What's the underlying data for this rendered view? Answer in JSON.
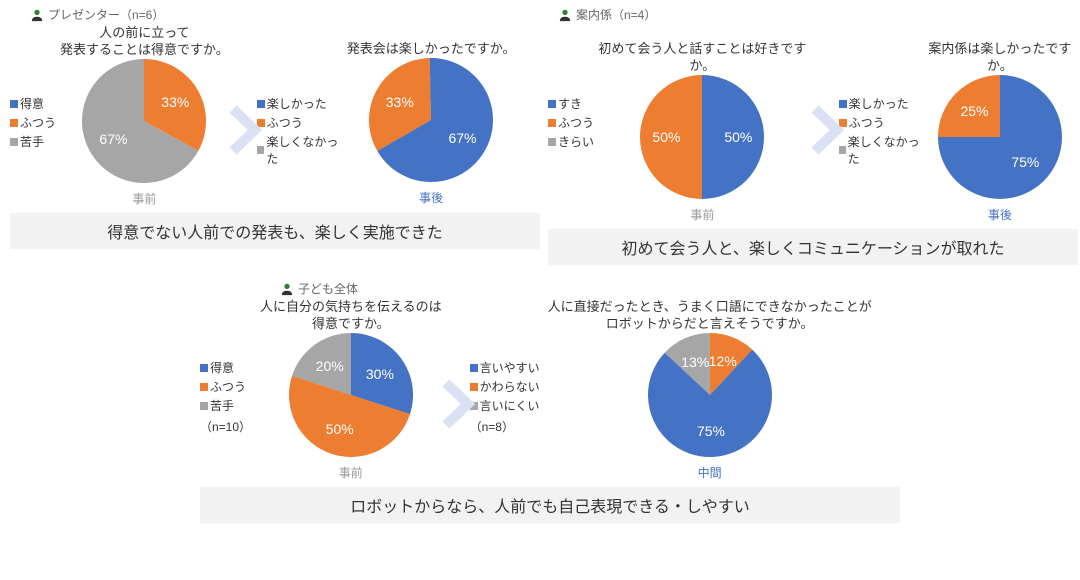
{
  "colors": {
    "blue": "#4472c4",
    "orange": "#ed7d31",
    "gray": "#a6a6a6",
    "lightgray": "#999999",
    "arrow": "#d9e1f2",
    "summary_bg": "#f2f2f2",
    "icon_green": "#2e7d32"
  },
  "sections": {
    "presenter": {
      "header": "プレゼンター（n=6）",
      "chart1": {
        "title": "人の前に立って\n発表することは得意ですか。",
        "type": "pie",
        "legend": [
          "得意",
          "ふつう",
          "苦手"
        ],
        "legend_colors": [
          "#4472c4",
          "#ed7d31",
          "#a6a6a6"
        ],
        "slices": [
          {
            "label": "33%",
            "value": 33,
            "color": "#ed7d31"
          },
          {
            "label": "67%",
            "value": 67,
            "color": "#a6a6a6"
          }
        ],
        "stage": "事前"
      },
      "chart2": {
        "title": "発表会は楽しかったですか。",
        "type": "pie",
        "legend": [
          "楽しかった",
          "ふつう",
          "楽しくなかった"
        ],
        "legend_colors": [
          "#4472c4",
          "#ed7d31",
          "#a6a6a6"
        ],
        "slices": [
          {
            "label": "33%",
            "value": 33,
            "color": "#ed7d31"
          },
          {
            "label": "67%",
            "value": 67,
            "color": "#4472c4"
          }
        ],
        "stage": "事後"
      },
      "summary": "得意でない人前での発表も、楽しく実施できた"
    },
    "guide": {
      "header": "案内係（n=4）",
      "chart1": {
        "title": "初めて会う人と話すことは好きですか。",
        "type": "pie",
        "legend": [
          "すき",
          "ふつう",
          "きらい"
        ],
        "legend_colors": [
          "#4472c4",
          "#ed7d31",
          "#a6a6a6"
        ],
        "slices": [
          {
            "label": "50%",
            "value": 50,
            "color": "#4472c4"
          },
          {
            "label": "50%",
            "value": 50,
            "color": "#ed7d31"
          }
        ],
        "stage": "事前"
      },
      "chart2": {
        "title": "案内係は楽しかったですか。",
        "type": "pie",
        "legend": [
          "楽しかった",
          "ふつう",
          "楽しくなかった"
        ],
        "legend_colors": [
          "#4472c4",
          "#ed7d31",
          "#a6a6a6"
        ],
        "slices": [
          {
            "label": "25%",
            "value": 25,
            "color": "#ed7d31"
          },
          {
            "label": "75%",
            "value": 75,
            "color": "#4472c4"
          }
        ],
        "stage": "事後"
      },
      "summary": "初めて会う人と、楽しくコミュニケーションが取れた"
    },
    "children": {
      "header": "子ども全体",
      "chart1": {
        "title": "人に自分の気持ちを伝えるのは\n得意ですか。",
        "type": "pie",
        "legend": [
          "得意",
          "ふつう",
          "苦手"
        ],
        "legend_colors": [
          "#4472c4",
          "#ed7d31",
          "#a6a6a6"
        ],
        "n_label": "（n=10）",
        "slices": [
          {
            "label": "30%",
            "value": 30,
            "color": "#4472c4"
          },
          {
            "label": "50%",
            "value": 50,
            "color": "#ed7d31"
          },
          {
            "label": "20%",
            "value": 20,
            "color": "#a6a6a6"
          }
        ],
        "stage": "事前"
      },
      "chart2": {
        "title": "人に直接だったとき、うまく口語にできなかったことが\nロボットからだと言えそうですか。",
        "type": "pie",
        "legend": [
          "言いやすい",
          "かわらない",
          "言いにくい"
        ],
        "legend_colors": [
          "#4472c4",
          "#ed7d31",
          "#a6a6a6"
        ],
        "n_label": "（n=8）",
        "slices": [
          {
            "label": "75%",
            "value": 75,
            "color": "#4472c4"
          },
          {
            "label": "12%",
            "value": 12,
            "color": "#ed7d31"
          },
          {
            "label": "13%",
            "value": 13,
            "color": "#a6a6a6"
          }
        ],
        "stage": "中間"
      },
      "summary": "ロボットからなら、人前でも自己表現できる・しやすい"
    }
  },
  "pie_radius": 62,
  "stage_colors": {
    "事前": "#999999",
    "事後": "#4472c4",
    "中間": "#4472c4"
  }
}
